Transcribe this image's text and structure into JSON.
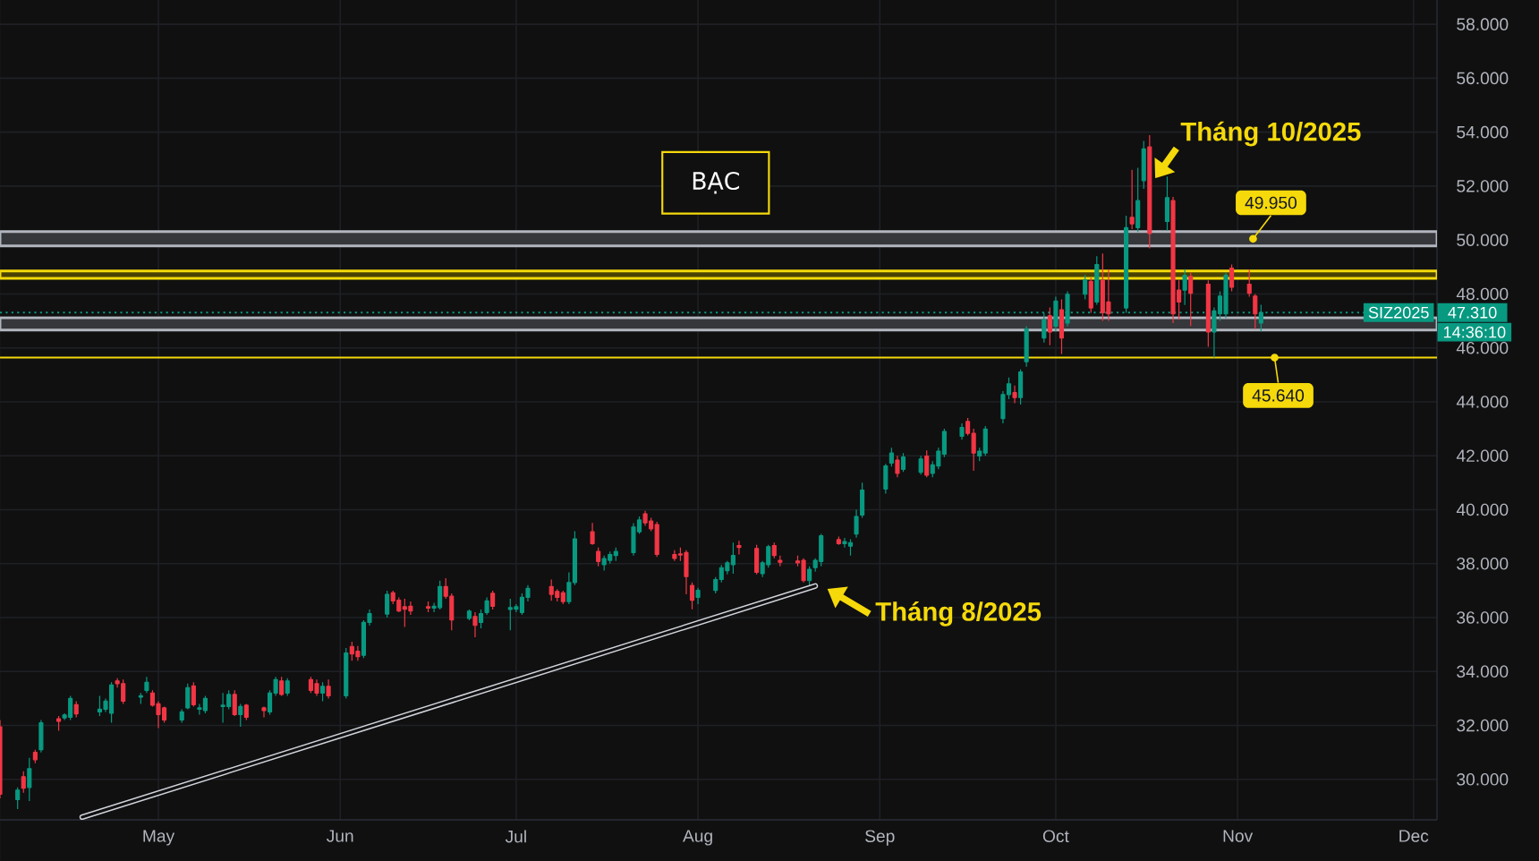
{
  "chart_data": {
    "type": "candlestick",
    "title": "BẠC",
    "series": [
      {
        "name": "SIZ2025",
        "x": [
          "2025-04-04",
          "2025-04-07",
          "2025-04-08",
          "2025-04-09",
          "2025-04-10",
          "2025-04-11",
          "2025-04-14",
          "2025-04-15",
          "2025-04-16",
          "2025-04-17",
          "2025-04-21",
          "2025-04-22",
          "2025-04-23",
          "2025-04-24",
          "2025-04-25",
          "2025-04-28",
          "2025-04-29",
          "2025-04-30",
          "2025-05-01",
          "2025-05-02",
          "2025-05-05",
          "2025-05-06",
          "2025-05-07",
          "2025-05-08",
          "2025-05-09",
          "2025-05-12",
          "2025-05-13",
          "2025-05-14",
          "2025-05-15",
          "2025-05-16",
          "2025-05-19",
          "2025-05-20",
          "2025-05-21",
          "2025-05-22",
          "2025-05-23",
          "2025-05-27",
          "2025-05-28",
          "2025-05-29",
          "2025-05-30",
          "2025-06-02",
          "2025-06-03",
          "2025-06-04",
          "2025-06-05",
          "2025-06-06",
          "2025-06-09",
          "2025-06-10",
          "2025-06-11",
          "2025-06-12",
          "2025-06-13",
          "2025-06-16",
          "2025-06-17",
          "2025-06-18",
          "2025-06-19",
          "2025-06-20",
          "2025-06-23",
          "2025-06-24",
          "2025-06-25",
          "2025-06-26",
          "2025-06-27",
          "2025-06-30",
          "2025-07-01",
          "2025-07-02",
          "2025-07-03",
          "2025-07-07",
          "2025-07-08",
          "2025-07-09",
          "2025-07-10",
          "2025-07-11",
          "2025-07-14",
          "2025-07-15",
          "2025-07-16",
          "2025-07-17",
          "2025-07-18",
          "2025-07-21",
          "2025-07-22",
          "2025-07-23",
          "2025-07-24",
          "2025-07-25",
          "2025-07-28",
          "2025-07-29",
          "2025-07-30",
          "2025-07-31",
          "2025-08-01",
          "2025-08-04",
          "2025-08-05",
          "2025-08-06",
          "2025-08-07",
          "2025-08-08",
          "2025-08-11",
          "2025-08-12",
          "2025-08-13",
          "2025-08-14",
          "2025-08-15",
          "2025-08-18",
          "2025-08-19",
          "2025-08-20",
          "2025-08-21",
          "2025-08-22",
          "2025-08-25",
          "2025-08-26",
          "2025-08-27",
          "2025-08-28",
          "2025-08-29",
          "2025-09-02",
          "2025-09-03",
          "2025-09-04",
          "2025-09-05",
          "2025-09-08",
          "2025-09-09",
          "2025-09-10",
          "2025-09-11",
          "2025-09-12",
          "2025-09-15",
          "2025-09-16",
          "2025-09-17",
          "2025-09-18",
          "2025-09-19",
          "2025-09-22",
          "2025-09-23",
          "2025-09-24",
          "2025-09-25",
          "2025-09-26",
          "2025-09-29",
          "2025-09-30",
          "2025-10-01",
          "2025-10-02",
          "2025-10-03",
          "2025-10-06",
          "2025-10-07",
          "2025-10-08",
          "2025-10-09",
          "2025-10-10",
          "2025-10-13",
          "2025-10-14",
          "2025-10-15",
          "2025-10-16",
          "2025-10-17",
          "2025-10-20",
          "2025-10-21",
          "2025-10-22",
          "2025-10-23",
          "2025-10-24",
          "2025-10-27",
          "2025-10-28",
          "2025-10-29",
          "2025-10-30",
          "2025-10-31",
          "2025-11-03",
          "2025-11-04",
          "2025-11-05"
        ],
        "ohlc": [
          [
            31.95,
            32.2,
            29.3,
            29.45
          ],
          [
            29.25,
            29.7,
            28.9,
            29.6
          ],
          [
            30.1,
            30.3,
            29.5,
            29.67
          ],
          [
            29.7,
            30.8,
            29.2,
            30.4
          ],
          [
            31.0,
            31.1,
            30.6,
            30.73
          ],
          [
            31.1,
            32.2,
            31.0,
            32.1
          ],
          [
            32.25,
            32.35,
            31.8,
            32.15
          ],
          [
            32.28,
            32.45,
            32.2,
            32.39
          ],
          [
            32.3,
            33.1,
            32.2,
            33.0
          ],
          [
            32.77,
            32.9,
            32.3,
            32.43
          ],
          [
            32.5,
            33.1,
            32.35,
            32.6
          ],
          [
            32.6,
            33.0,
            32.5,
            32.9
          ],
          [
            32.45,
            33.6,
            32.1,
            33.5
          ],
          [
            33.65,
            33.75,
            33.4,
            33.55
          ],
          [
            33.55,
            33.7,
            32.8,
            32.9
          ],
          [
            33.05,
            33.2,
            32.8,
            33.1
          ],
          [
            33.3,
            33.8,
            33.2,
            33.6
          ],
          [
            33.2,
            33.3,
            32.7,
            32.75
          ],
          [
            32.8,
            32.9,
            31.9,
            32.4
          ],
          [
            32.65,
            32.7,
            32.1,
            32.2
          ],
          [
            32.2,
            32.6,
            32.1,
            32.5
          ],
          [
            32.65,
            33.55,
            32.6,
            33.4
          ],
          [
            33.47,
            33.6,
            32.7,
            32.77
          ],
          [
            32.6,
            32.8,
            32.4,
            32.65
          ],
          [
            32.55,
            33.1,
            32.45,
            33.0
          ],
          [
            32.7,
            33.2,
            32.1,
            32.75
          ],
          [
            32.7,
            33.3,
            32.6,
            33.15
          ],
          [
            33.15,
            33.3,
            32.35,
            32.4
          ],
          [
            32.4,
            32.8,
            31.95,
            32.7
          ],
          [
            32.75,
            32.8,
            32.2,
            32.3
          ],
          [
            32.65,
            32.7,
            32.3,
            32.55
          ],
          [
            32.5,
            33.3,
            32.4,
            33.2
          ],
          [
            33.2,
            33.8,
            33.1,
            33.7
          ],
          [
            33.65,
            33.8,
            33.1,
            33.15
          ],
          [
            33.2,
            33.75,
            33.1,
            33.65
          ],
          [
            33.7,
            33.8,
            33.2,
            33.3
          ],
          [
            33.55,
            33.7,
            33.1,
            33.2
          ],
          [
            33.2,
            33.6,
            32.9,
            33.45
          ],
          [
            33.45,
            33.7,
            33.0,
            33.1
          ],
          [
            33.1,
            34.87,
            33.0,
            34.69
          ],
          [
            34.93,
            35.1,
            34.4,
            34.65
          ],
          [
            34.75,
            34.95,
            34.4,
            34.55
          ],
          [
            34.6,
            35.9,
            34.5,
            35.82
          ],
          [
            35.82,
            36.3,
            35.7,
            36.15
          ],
          [
            36.13,
            37.0,
            36.0,
            36.86
          ],
          [
            36.92,
            37.0,
            36.5,
            36.62
          ],
          [
            36.64,
            36.75,
            36.2,
            36.24
          ],
          [
            36.4,
            36.7,
            35.65,
            36.31
          ],
          [
            36.42,
            36.6,
            36.1,
            36.24
          ],
          [
            36.4,
            36.6,
            36.2,
            36.35
          ],
          [
            36.35,
            36.55,
            36.2,
            36.42
          ],
          [
            36.37,
            37.37,
            36.3,
            37.15
          ],
          [
            37.15,
            37.46,
            36.7,
            36.79
          ],
          [
            36.79,
            36.9,
            35.53,
            35.91
          ],
          [
            35.97,
            36.3,
            35.9,
            36.24
          ],
          [
            36.04,
            36.2,
            35.27,
            35.71
          ],
          [
            35.82,
            36.3,
            35.6,
            36.15
          ],
          [
            36.19,
            36.75,
            36.1,
            36.62
          ],
          [
            36.9,
            37.0,
            36.3,
            36.42
          ],
          [
            36.3,
            36.7,
            35.53,
            36.37
          ],
          [
            36.31,
            36.5,
            36.2,
            36.4
          ],
          [
            36.19,
            36.9,
            36.1,
            36.75
          ],
          [
            36.75,
            37.2,
            36.6,
            37.08
          ],
          [
            37.15,
            37.41,
            36.62,
            36.86
          ],
          [
            36.97,
            37.05,
            36.6,
            36.75
          ],
          [
            36.92,
            37.0,
            36.5,
            36.59
          ],
          [
            36.59,
            37.68,
            36.5,
            37.3
          ],
          [
            37.3,
            39.2,
            37.2,
            38.92
          ],
          [
            39.18,
            39.51,
            38.7,
            38.74
          ],
          [
            38.45,
            38.6,
            37.9,
            38.08
          ],
          [
            37.96,
            38.3,
            37.74,
            38.19
          ],
          [
            38.12,
            38.45,
            38.0,
            38.34
          ],
          [
            38.3,
            38.6,
            38.1,
            38.45
          ],
          [
            38.41,
            39.5,
            38.3,
            39.36
          ],
          [
            39.18,
            39.75,
            39.1,
            39.62
          ],
          [
            39.85,
            39.96,
            39.4,
            39.51
          ],
          [
            39.58,
            39.7,
            39.2,
            39.29
          ],
          [
            39.45,
            39.55,
            38.25,
            38.34
          ],
          [
            38.34,
            38.5,
            38.1,
            38.19
          ],
          [
            38.36,
            38.6,
            38.1,
            38.32
          ],
          [
            38.41,
            38.5,
            36.86,
            37.52
          ],
          [
            37.19,
            37.3,
            36.31,
            36.64
          ],
          [
            36.75,
            37.1,
            36.5,
            37.01
          ],
          [
            37.01,
            37.5,
            36.9,
            37.41
          ],
          [
            37.41,
            37.95,
            37.3,
            37.85
          ],
          [
            37.74,
            38.1,
            37.6,
            38.03
          ],
          [
            37.96,
            38.78,
            37.63,
            38.3
          ],
          [
            38.67,
            38.85,
            38.34,
            38.6
          ],
          [
            38.56,
            38.7,
            37.6,
            37.68
          ],
          [
            37.63,
            38.1,
            37.5,
            38.03
          ],
          [
            37.96,
            38.7,
            37.85,
            38.63
          ],
          [
            38.67,
            38.78,
            38.2,
            38.3
          ],
          [
            38.12,
            38.3,
            37.9,
            38.05
          ],
          [
            38.1,
            38.3,
            37.9,
            38.03
          ],
          [
            38.12,
            38.2,
            37.3,
            37.37
          ],
          [
            37.37,
            37.9,
            37.19,
            37.79
          ],
          [
            37.85,
            38.2,
            37.7,
            38.12
          ],
          [
            38.08,
            39.1,
            37.9,
            39.03
          ],
          [
            38.89,
            39.0,
            38.7,
            38.74
          ],
          [
            38.74,
            38.95,
            38.6,
            38.82
          ],
          [
            38.65,
            38.9,
            38.3,
            38.78
          ],
          [
            39.1,
            40.0,
            38.96,
            39.75
          ],
          [
            39.8,
            41.0,
            39.7,
            40.73
          ],
          [
            40.77,
            41.7,
            40.6,
            41.62
          ],
          [
            41.73,
            42.3,
            41.6,
            42.1
          ],
          [
            41.84,
            42.0,
            41.2,
            41.35
          ],
          [
            41.5,
            42.1,
            41.4,
            41.95
          ],
          [
            41.39,
            42.0,
            41.3,
            41.88
          ],
          [
            41.99,
            42.2,
            41.2,
            41.28
          ],
          [
            41.35,
            41.8,
            41.2,
            41.66
          ],
          [
            41.62,
            42.3,
            41.5,
            42.17
          ],
          [
            42.06,
            43.0,
            41.95,
            42.9
          ],
          [
            42.72,
            43.2,
            42.6,
            43.05
          ],
          [
            43.27,
            43.4,
            42.75,
            42.83
          ],
          [
            42.83,
            43.0,
            41.44,
            42.1
          ],
          [
            41.99,
            42.3,
            41.8,
            42.17
          ],
          [
            42.1,
            43.1,
            42.0,
            42.99
          ],
          [
            43.38,
            44.4,
            43.2,
            44.27
          ],
          [
            44.27,
            44.9,
            44.1,
            44.67
          ],
          [
            44.34,
            44.6,
            43.95,
            44.16
          ],
          [
            44.16,
            45.2,
            43.9,
            45.11
          ],
          [
            45.49,
            46.8,
            45.3,
            46.7
          ],
          [
            46.37,
            47.3,
            46.2,
            47.04
          ],
          [
            47.19,
            47.5,
            46.1,
            46.59
          ],
          [
            46.81,
            47.9,
            46.6,
            47.74
          ],
          [
            47.41,
            47.8,
            45.77,
            46.37
          ],
          [
            46.92,
            48.1,
            46.8,
            47.99
          ],
          [
            47.99,
            48.7,
            47.8,
            48.52
          ],
          [
            48.47,
            48.6,
            47.3,
            47.48
          ],
          [
            47.7,
            49.4,
            47.6,
            49.09
          ],
          [
            48.5,
            49.5,
            47.0,
            47.3
          ],
          [
            47.7,
            48.9,
            47.0,
            47.26
          ],
          [
            47.48,
            50.9,
            47.3,
            50.46
          ],
          [
            50.84,
            52.6,
            50.4,
            50.6
          ],
          [
            50.46,
            52.68,
            50.3,
            51.46
          ],
          [
            52.2,
            53.67,
            51.9,
            53.38
          ],
          [
            53.45,
            53.89,
            49.69,
            50.24
          ],
          [
            50.69,
            52.35,
            50.35,
            51.57
          ],
          [
            51.46,
            51.6,
            46.92,
            47.26
          ],
          [
            48.14,
            48.5,
            47.04,
            47.7
          ],
          [
            48.14,
            48.92,
            47.59,
            48.69
          ],
          [
            48.65,
            48.8,
            46.81,
            48.03
          ],
          [
            48.36,
            48.5,
            46.04,
            46.59
          ],
          [
            46.59,
            47.5,
            45.64,
            47.37
          ],
          [
            47.26,
            48.1,
            47.0,
            47.92
          ],
          [
            47.26,
            48.8,
            47.1,
            48.69
          ],
          [
            48.96,
            49.09,
            48.1,
            48.25
          ],
          [
            48.36,
            48.9,
            47.9,
            48.03
          ],
          [
            47.92,
            48.0,
            46.7,
            47.26
          ],
          [
            46.92,
            47.6,
            46.6,
            47.31
          ]
        ],
        "colors": [
          "#f23645",
          "#089981",
          "#f23645",
          "#089981",
          "#f23645",
          "#089981",
          "#f23645",
          "#089981",
          "#089981",
          "#f23645",
          "#089981",
          "#089981",
          "#089981",
          "#f23645",
          "#f23645",
          "#089981",
          "#089981",
          "#f23645",
          "#f23645",
          "#f23645",
          "#089981",
          "#089981",
          "#f23645",
          "#089981",
          "#089981",
          "#089981",
          "#089981",
          "#f23645",
          "#089981",
          "#f23645",
          "#f23645",
          "#089981",
          "#089981",
          "#f23645",
          "#089981",
          "#f23645",
          "#f23645",
          "#089981",
          "#f23645",
          "#089981",
          "#f23645",
          "#f23645",
          "#089981",
          "#089981",
          "#089981",
          "#f23645",
          "#f23645",
          "#f23645",
          "#f23645",
          "#f23645",
          "#089981",
          "#089981",
          "#f23645",
          "#f23645",
          "#089981",
          "#f23645",
          "#089981",
          "#089981",
          "#f23645",
          "#089981",
          "#089981",
          "#089981",
          "#089981",
          "#f23645",
          "#f23645",
          "#f23645",
          "#089981",
          "#089981",
          "#f23645",
          "#f23645",
          "#089981",
          "#089981",
          "#089981",
          "#089981",
          "#089981",
          "#f23645",
          "#f23645",
          "#f23645",
          "#f23645",
          "#f23645",
          "#f23645",
          "#f23645",
          "#089981",
          "#089981",
          "#089981",
          "#089981",
          "#089981",
          "#f23645",
          "#f23645",
          "#089981",
          "#089981",
          "#f23645",
          "#f23645",
          "#f23645",
          "#f23645",
          "#089981",
          "#089981",
          "#089981",
          "#f23645",
          "#089981",
          "#089981",
          "#089981",
          "#089981",
          "#089981",
          "#089981",
          "#f23645",
          "#089981",
          "#089981",
          "#f23645",
          "#089981",
          "#089981",
          "#089981",
          "#089981",
          "#f23645",
          "#f23645",
          "#089981",
          "#089981",
          "#089981",
          "#089981",
          "#f23645",
          "#089981",
          "#089981",
          "#089981",
          "#f23645",
          "#089981",
          "#f23645",
          "#089981",
          "#089981",
          "#f23645",
          "#089981",
          "#f23645",
          "#f23645",
          "#089981",
          "#f23645",
          "#089981",
          "#089981",
          "#f23645",
          "#089981",
          "#f23645",
          "#f23645",
          "#089981",
          "#f23645",
          "#f23645",
          "#089981",
          "#089981",
          "#089981",
          "#f23645",
          "#f23645",
          "#f23645",
          "#089981"
        ]
      },
      {
        "type": "line",
        "x": [
          "2025-04-18",
          "2025-08-21"
        ],
        "values": [
          28.6,
          37.17
        ],
        "color": "#d1d4dc",
        "line_style": "solid"
      }
    ],
    "xlim": [
      "2025-04-04",
      "2025-12-05"
    ],
    "xticks": [
      {
        "value": "2025-05-01",
        "label": "May"
      },
      {
        "value": "2025-06-01",
        "label": "Jun"
      },
      {
        "value": "2025-07-01",
        "label": "Jul"
      },
      {
        "value": "2025-08-01",
        "label": "Aug"
      },
      {
        "value": "2025-09-01",
        "label": "Sep"
      },
      {
        "value": "2025-10-01",
        "label": "Oct"
      },
      {
        "value": "2025-11-01",
        "label": "Nov"
      },
      {
        "value": "2025-12-01",
        "label": "Dec"
      }
    ],
    "ylim": [
      28.5,
      58.9
    ],
    "yticks": [
      {
        "value": 30,
        "label": "30.000"
      },
      {
        "value": 32,
        "label": "32.000"
      },
      {
        "value": 34,
        "label": "34.000"
      },
      {
        "value": 36,
        "label": "36.000"
      },
      {
        "value": 38,
        "label": "38.000"
      },
      {
        "value": 40,
        "label": "40.000"
      },
      {
        "value": 42,
        "label": "42.000"
      },
      {
        "value": 44,
        "label": "44.000"
      },
      {
        "value": 46,
        "label": "46.000"
      },
      {
        "value": 48,
        "label": "48.000"
      },
      {
        "value": 50,
        "label": "50.000"
      },
      {
        "value": 52,
        "label": "52.000"
      },
      {
        "value": 54,
        "label": "54.000"
      },
      {
        "value": 56,
        "label": "56.000"
      },
      {
        "value": 58,
        "label": "58.000"
      }
    ],
    "grid": true,
    "ref_lines": [
      {
        "axis": "y",
        "value": 47.31,
        "label": "47.310",
        "color": "#089981",
        "line_style": "dotted"
      },
      {
        "axis": "y",
        "value": 45.64,
        "label": "45.640",
        "color": "#f5d90a",
        "line_style": "solid"
      }
    ],
    "bands": [
      {
        "axis": "y",
        "from": 49.78,
        "to": 50.31,
        "label": "49.950",
        "color": "#36373a"
      },
      {
        "axis": "y",
        "from": 46.66,
        "to": 47.12,
        "color": "#36373a"
      },
      {
        "axis": "y",
        "from": 48.58,
        "to": 48.85,
        "color": "#4a4203"
      }
    ],
    "annotations": [
      {
        "text": "Tháng 10/2025",
        "x": "2025-10-17",
        "y": 52.0
      },
      {
        "text": "Tháng 8/2025",
        "x": "2025-08-22",
        "y": 37.2
      },
      "14:36:10"
    ]
  }
}
